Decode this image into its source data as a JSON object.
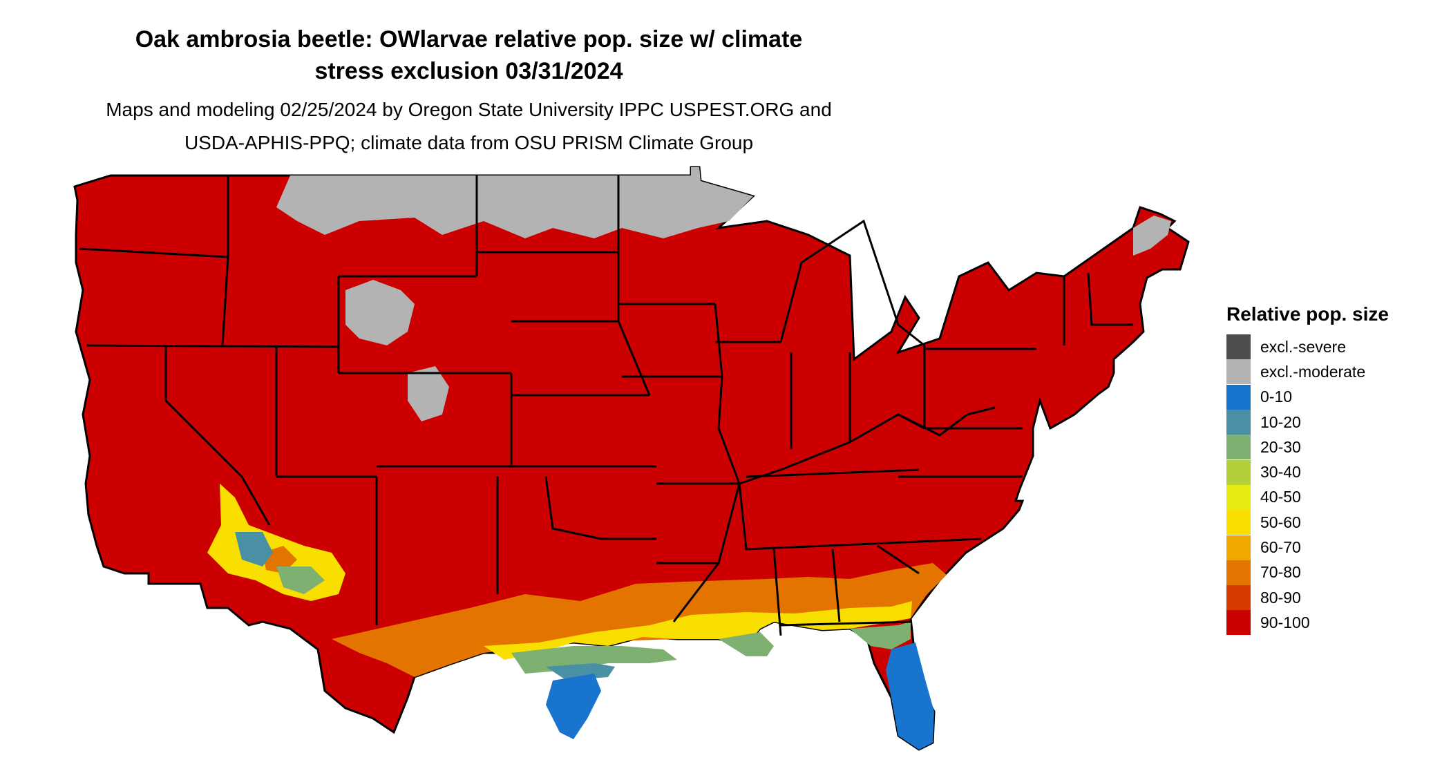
{
  "title_line1": "Oak ambrosia beetle: OWlarvae relative pop. size w/ climate",
  "title_line2": "stress exclusion 03/31/2024",
  "subtitle_line1": "Maps and modeling 02/25/2024 by Oregon State University IPPC USPEST.ORG and",
  "subtitle_line2": "USDA-APHIS-PPQ; climate data from OSU PRISM Climate Group",
  "legend": {
    "title": "Relative pop. size",
    "items": [
      {
        "label": "excl.-severe",
        "color": "#4d4d4d"
      },
      {
        "label": "excl.-moderate",
        "color": "#b3b3b3"
      },
      {
        "label": "0-10",
        "color": "#1874cd"
      },
      {
        "label": "10-20",
        "color": "#4a90a4"
      },
      {
        "label": "20-30",
        "color": "#7db071"
      },
      {
        "label": "30-40",
        "color": "#b4cf3c"
      },
      {
        "label": "40-50",
        "color": "#e6ec13"
      },
      {
        "label": "50-60",
        "color": "#f9df00"
      },
      {
        "label": "60-70",
        "color": "#f0a800"
      },
      {
        "label": "70-80",
        "color": "#e37400"
      },
      {
        "label": "80-90",
        "color": "#d83a00"
      },
      {
        "label": "90-100",
        "color": "#cc0000"
      }
    ]
  },
  "map": {
    "base_color": "#cc0000",
    "excluded_color": "#b3b3b3",
    "border_color": "#000000"
  }
}
